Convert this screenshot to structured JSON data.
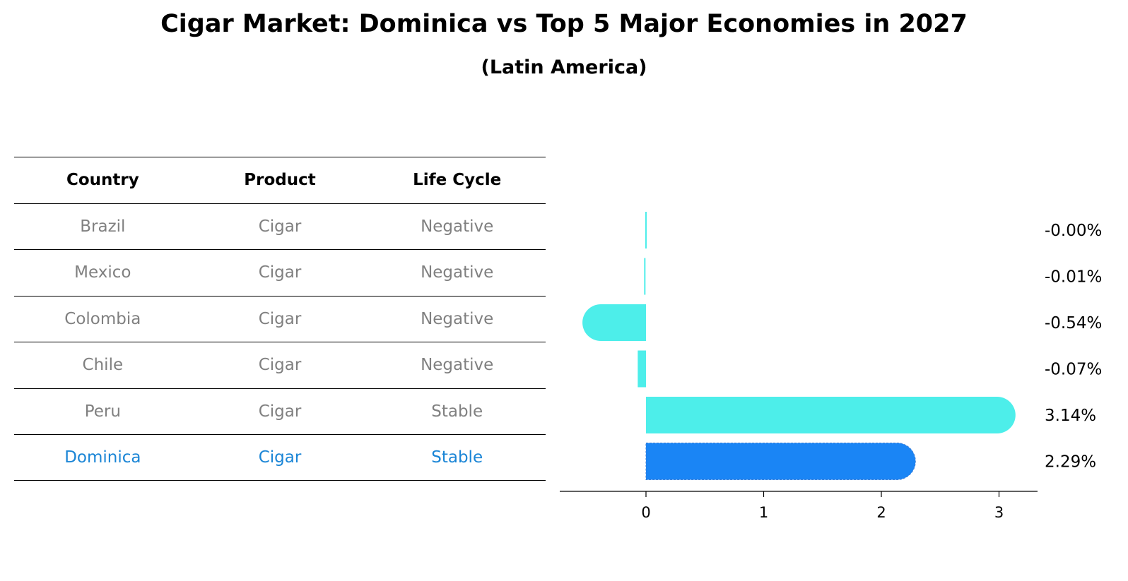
{
  "title": "Cigar Market: Dominica vs Top 5 Major Economies in 2027",
  "subtitle": "(Latin America)",
  "table": {
    "headers": [
      "Country",
      "Product",
      "Life Cycle"
    ],
    "rows": [
      [
        "Brazil",
        "Cigar",
        "Negative"
      ],
      [
        "Mexico",
        "Cigar",
        "Negative"
      ],
      [
        "Colombia",
        "Cigar",
        "Negative"
      ],
      [
        "Chile",
        "Cigar",
        "Negative"
      ],
      [
        "Peru",
        "Cigar",
        "Stable"
      ],
      [
        "Dominica",
        "Cigar",
        "Stable"
      ]
    ],
    "highlight_row": "Dominica"
  },
  "colors": {
    "bar": "#4deeea",
    "highlight_bar": "#1a85f5",
    "highlight_text": "#1a85d6",
    "muted_text": "#808080"
  },
  "chart_data": {
    "type": "bar",
    "orientation": "horizontal",
    "categories": [
      "Brazil",
      "Mexico",
      "Colombia",
      "Chile",
      "Peru",
      "Dominica"
    ],
    "values": [
      -0.0,
      -0.01,
      -0.54,
      -0.07,
      3.14,
      2.29
    ],
    "value_labels": [
      "-0.00%",
      "-0.01%",
      "-0.54%",
      "-0.07%",
      "3.14%",
      "2.29%"
    ],
    "highlight": "Dominica",
    "xticks": [
      0,
      1,
      2,
      3
    ],
    "xlim": [
      -0.73,
      3.33
    ],
    "grid": false
  }
}
